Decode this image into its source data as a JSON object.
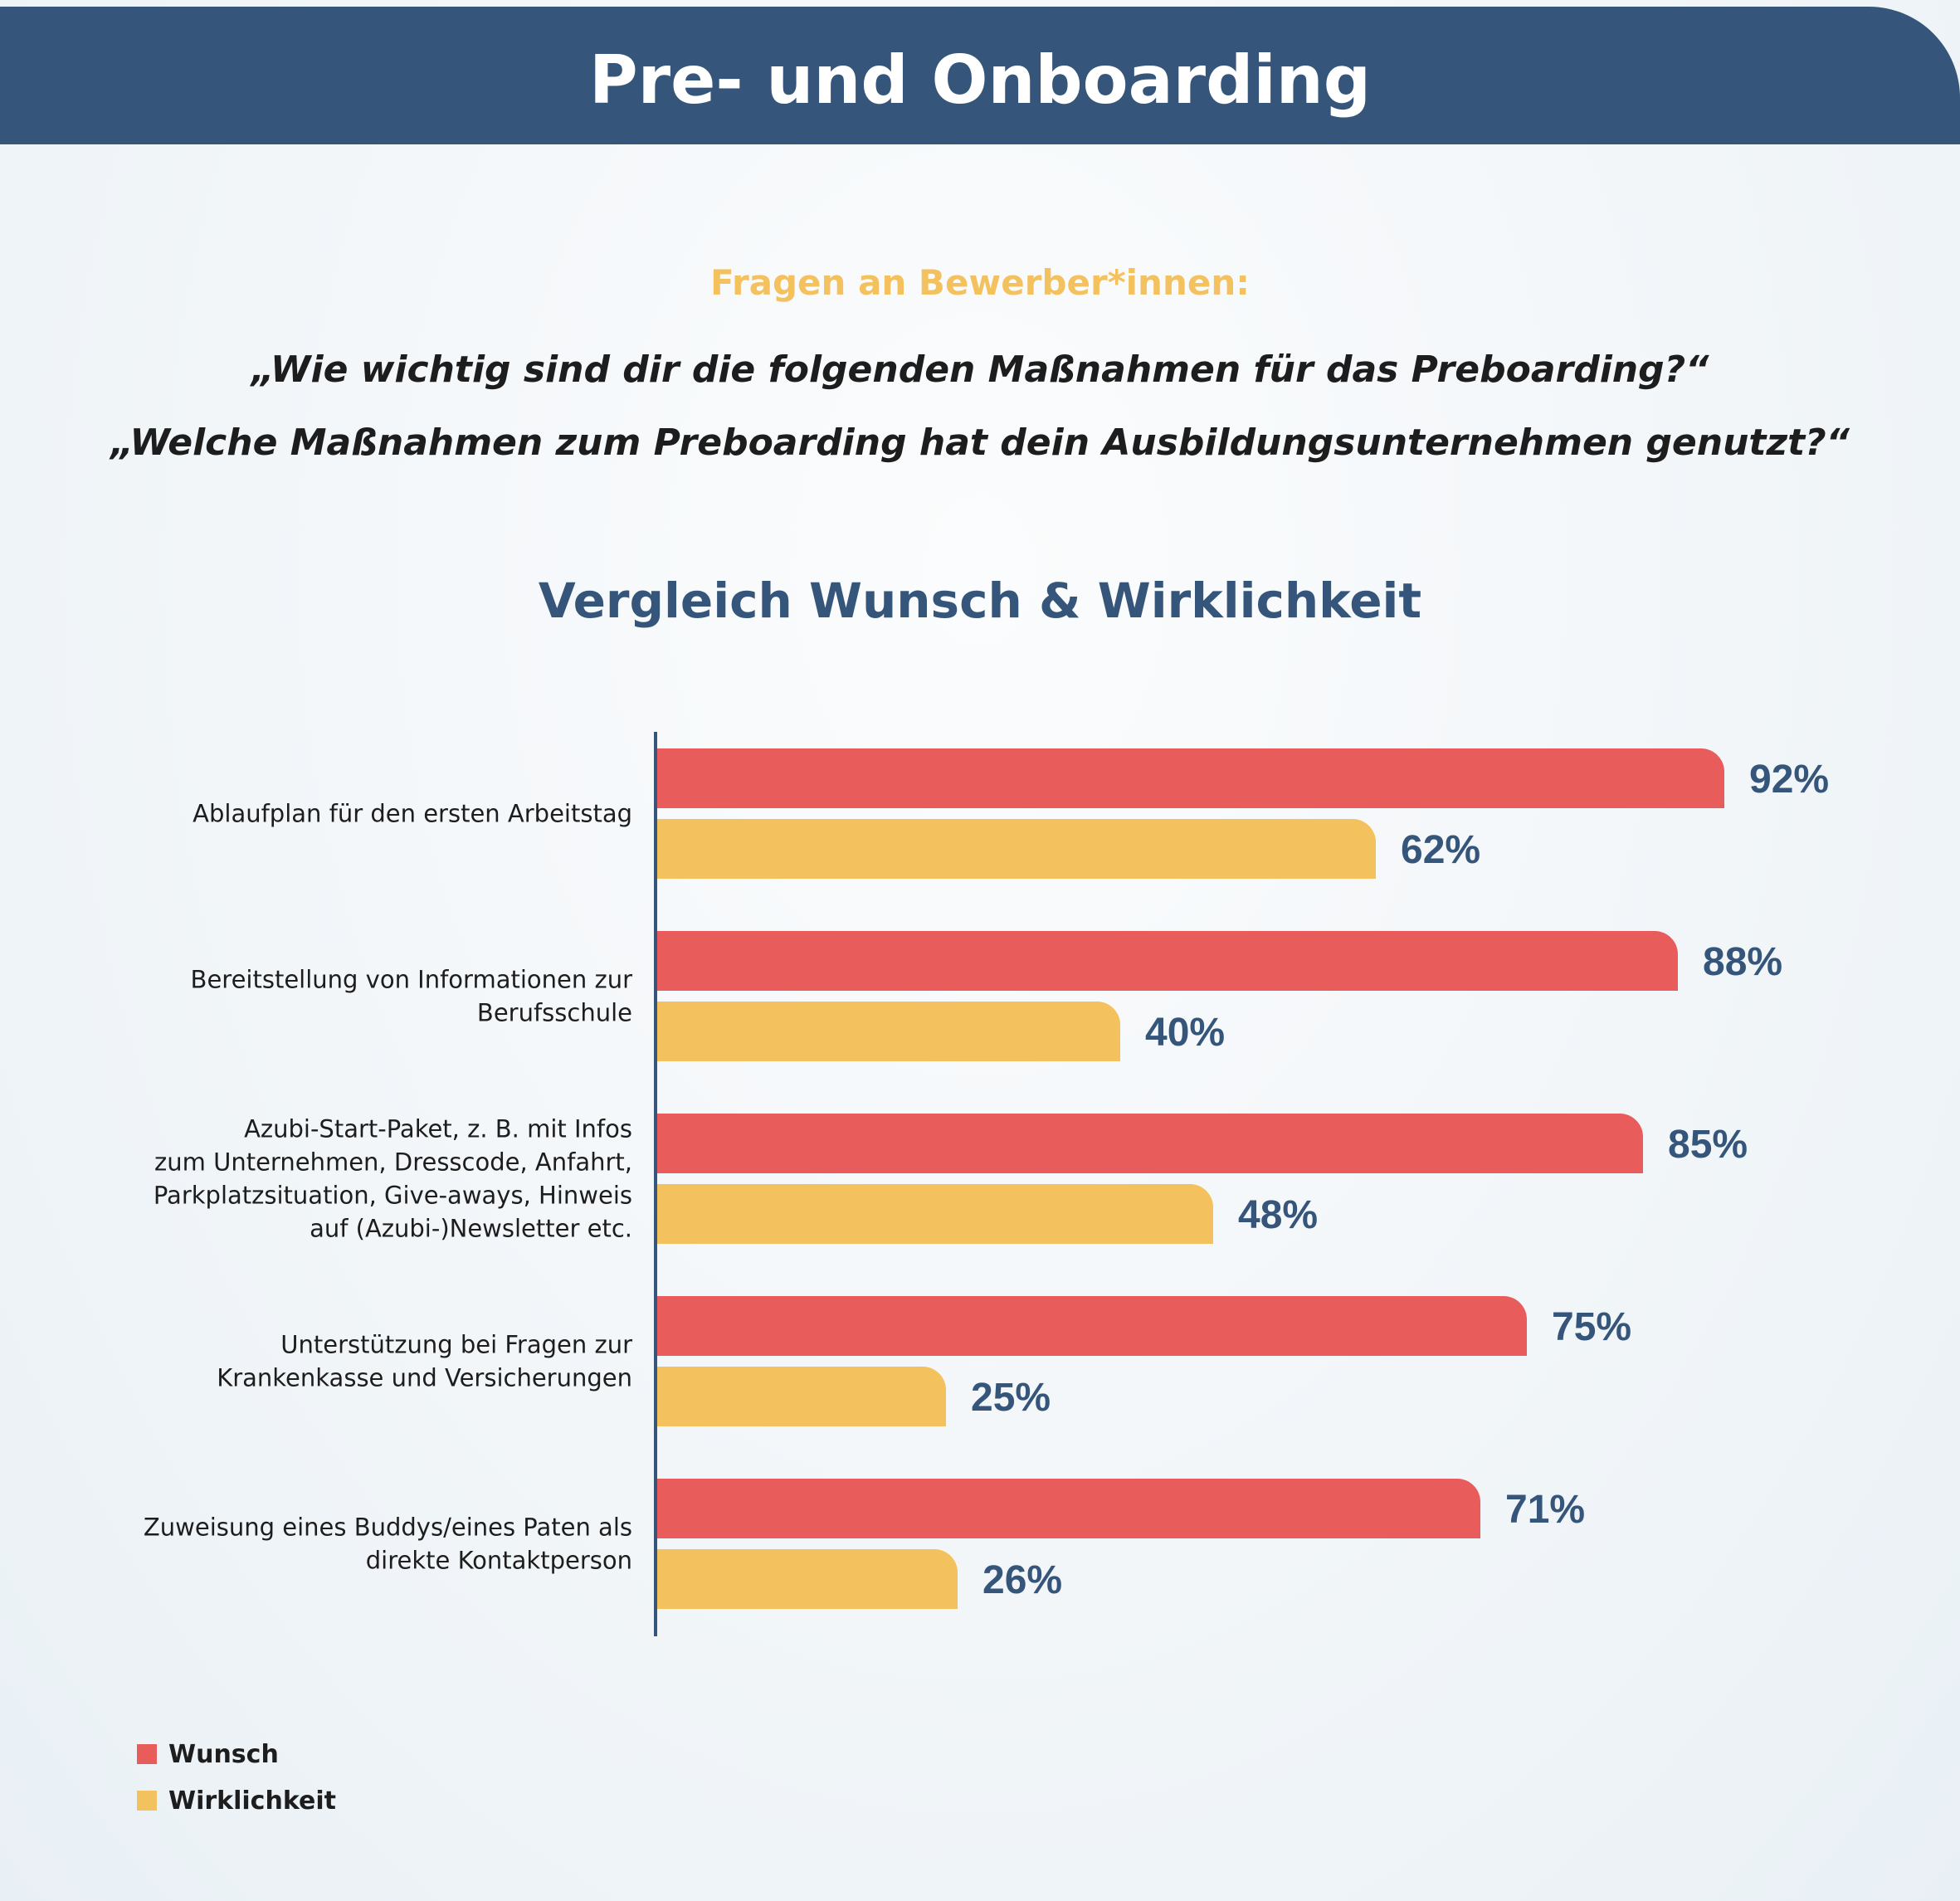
{
  "header": {
    "title": "Pre- und Onboarding"
  },
  "intro": {
    "subtitle": "Fragen an Bewerber*innen:",
    "question_1": "„Wie wichtig sind dir die folgenden Maßnahmen für das Preboarding?“",
    "question_2": "„Welche Maßnahmen zum Preboarding hat dein Ausbildungsunternehmen genutzt?“"
  },
  "colors": {
    "header": "#35567a",
    "wunsch": "#e95c5c",
    "wirklichkeit": "#f3c15e",
    "value_text": "#35567a"
  },
  "chart_data": {
    "type": "bar",
    "orientation": "horizontal",
    "title": "Vergleich Wunsch & Wirklichkeit",
    "categories": [
      [
        "Ablaufplan für den ersten Arbeitstag"
      ],
      [
        "Bereitstellung von Informationen zur",
        "Berufsschule"
      ],
      [
        "Azubi-Start-Paket, z. B. mit Infos",
        "zum Unternehmen, Dresscode, Anfahrt,",
        "Parkplatzsituation, Give-aways, Hinweis",
        "auf (Azubi-)Newsletter etc."
      ],
      [
        "Unterstützung bei Fragen zur",
        "Krankenkasse und Versicherungen"
      ],
      [
        "Zuweisung eines Buddys/eines Paten als",
        "direkte Kontaktperson"
      ]
    ],
    "series": [
      {
        "name": "Wunsch",
        "color": "#e95c5c",
        "values": [
          92,
          88,
          85,
          75,
          71
        ],
        "labels": [
          "92%",
          "88%",
          "85%",
          "75%",
          "71%"
        ]
      },
      {
        "name": "Wirklichkeit",
        "color": "#f3c15e",
        "values": [
          62,
          40,
          48,
          25,
          26
        ],
        "labels": [
          "62%",
          "40%",
          "48%",
          "25%",
          "26%"
        ]
      }
    ],
    "xlim": [
      0,
      100
    ],
    "unit": "%",
    "legend_position": "bottom-left"
  },
  "legend": {
    "wunsch": "Wunsch",
    "wirklichkeit": "Wirklichkeit"
  }
}
